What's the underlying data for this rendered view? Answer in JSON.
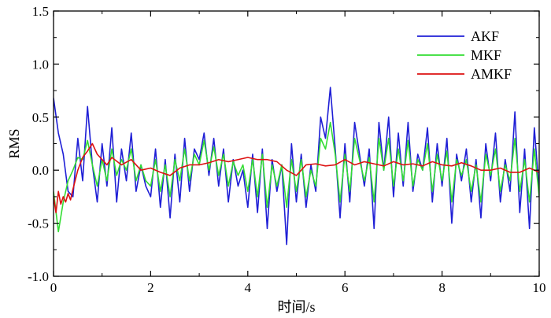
{
  "chart_data": {
    "type": "line",
    "title": "",
    "xlabel": "时间/s",
    "ylabel": "RMS",
    "xlim": [
      0,
      10
    ],
    "ylim": [
      -1.0,
      1.5
    ],
    "xticks": [
      0,
      2,
      4,
      6,
      8,
      10
    ],
    "xtick_labels": [
      "0",
      "2",
      "4",
      "6",
      "8",
      "10"
    ],
    "yticks": [
      -1.0,
      -0.5,
      0.0,
      0.5,
      1.0,
      1.5
    ],
    "ytick_labels": [
      "-1.0",
      "-0.5",
      "0.0",
      "0.5",
      "1.0",
      "1.5"
    ],
    "grid": false,
    "legend": "top-right",
    "series": [
      {
        "name": "AKF",
        "color": "#1f1fd6",
        "x": [
          0,
          0.1,
          0.2,
          0.3,
          0.4,
          0.5,
          0.6,
          0.7,
          0.8,
          0.9,
          1.0,
          1.1,
          1.2,
          1.3,
          1.4,
          1.5,
          1.6,
          1.7,
          1.8,
          1.9,
          2.0,
          2.1,
          2.2,
          2.3,
          2.4,
          2.5,
          2.6,
          2.7,
          2.8,
          2.9,
          3.0,
          3.1,
          3.2,
          3.3,
          3.4,
          3.5,
          3.6,
          3.7,
          3.8,
          3.9,
          4.0,
          4.1,
          4.2,
          4.3,
          4.4,
          4.5,
          4.6,
          4.7,
          4.8,
          4.9,
          5.0,
          5.1,
          5.2,
          5.3,
          5.4,
          5.5,
          5.6,
          5.7,
          5.8,
          5.9,
          6.0,
          6.1,
          6.2,
          6.3,
          6.4,
          6.5,
          6.6,
          6.7,
          6.8,
          6.9,
          7.0,
          7.1,
          7.2,
          7.3,
          7.4,
          7.5,
          7.6,
          7.7,
          7.8,
          7.9,
          8.0,
          8.1,
          8.2,
          8.3,
          8.4,
          8.5,
          8.6,
          8.7,
          8.8,
          8.9,
          9.0,
          9.1,
          9.2,
          9.3,
          9.4,
          9.5,
          9.6,
          9.7,
          9.8,
          9.9,
          10.0
        ],
        "y": [
          0.68,
          0.35,
          0.15,
          -0.2,
          -0.25,
          0.3,
          -0.1,
          0.6,
          0.05,
          -0.3,
          0.25,
          -0.15,
          0.4,
          -0.3,
          0.2,
          -0.1,
          0.35,
          -0.2,
          0.05,
          -0.15,
          -0.25,
          0.2,
          -0.35,
          0.1,
          -0.45,
          0.15,
          -0.3,
          0.3,
          -0.2,
          0.2,
          0.1,
          0.35,
          -0.05,
          0.3,
          -0.15,
          0.2,
          -0.3,
          0.1,
          -0.15,
          0.0,
          -0.35,
          0.15,
          -0.4,
          0.2,
          -0.55,
          0.1,
          -0.2,
          0.05,
          -0.7,
          0.25,
          -0.3,
          0.15,
          -0.35,
          0.05,
          -0.2,
          0.5,
          0.3,
          0.78,
          0.2,
          -0.45,
          0.25,
          -0.3,
          0.45,
          0.15,
          -0.15,
          0.2,
          -0.55,
          0.45,
          0.0,
          0.5,
          -0.25,
          0.35,
          -0.15,
          0.45,
          -0.2,
          0.15,
          0.0,
          0.4,
          -0.3,
          0.25,
          -0.15,
          0.3,
          -0.5,
          0.15,
          -0.1,
          0.2,
          -0.3,
          0.1,
          -0.45,
          0.25,
          -0.1,
          0.35,
          -0.3,
          0.1,
          -0.2,
          0.55,
          -0.4,
          0.2,
          -0.55,
          0.4,
          -0.2
        ]
      },
      {
        "name": "MKF",
        "color": "#33dd33",
        "x": [
          0,
          0.1,
          0.2,
          0.3,
          0.4,
          0.5,
          0.6,
          0.7,
          0.8,
          0.9,
          1.0,
          1.1,
          1.2,
          1.3,
          1.4,
          1.5,
          1.6,
          1.7,
          1.8,
          1.9,
          2.0,
          2.1,
          2.2,
          2.3,
          2.4,
          2.5,
          2.6,
          2.7,
          2.8,
          2.9,
          3.0,
          3.1,
          3.2,
          3.3,
          3.4,
          3.5,
          3.6,
          3.7,
          3.8,
          3.9,
          4.0,
          4.1,
          4.2,
          4.3,
          4.4,
          4.5,
          4.6,
          4.7,
          4.8,
          4.9,
          5.0,
          5.1,
          5.2,
          5.3,
          5.4,
          5.5,
          5.6,
          5.7,
          5.8,
          5.9,
          6.0,
          6.1,
          6.2,
          6.3,
          6.4,
          6.5,
          6.6,
          6.7,
          6.8,
          6.9,
          7.0,
          7.1,
          7.2,
          7.3,
          7.4,
          7.5,
          7.6,
          7.7,
          7.8,
          7.9,
          8.0,
          8.1,
          8.2,
          8.3,
          8.4,
          8.5,
          8.6,
          8.7,
          8.8,
          8.9,
          9.0,
          9.1,
          9.2,
          9.3,
          9.4,
          9.5,
          9.6,
          9.7,
          9.8,
          9.9,
          10.0
        ],
        "y": [
          -0.2,
          -0.58,
          -0.3,
          -0.1,
          0.0,
          0.12,
          0.1,
          0.28,
          0.05,
          -0.15,
          0.1,
          -0.1,
          0.2,
          -0.05,
          0.1,
          0.0,
          0.2,
          -0.1,
          0.05,
          -0.1,
          -0.15,
          0.1,
          -0.2,
          0.05,
          -0.25,
          0.1,
          -0.1,
          0.2,
          -0.1,
          0.15,
          0.05,
          0.28,
          0.0,
          0.22,
          -0.05,
          0.15,
          -0.15,
          0.08,
          -0.05,
          0.05,
          -0.2,
          0.1,
          -0.25,
          0.15,
          -0.35,
          0.05,
          -0.15,
          0.05,
          -0.35,
          0.1,
          -0.2,
          0.1,
          -0.25,
          0.0,
          -0.15,
          0.3,
          0.2,
          0.45,
          0.15,
          -0.3,
          0.15,
          -0.2,
          0.3,
          0.1,
          -0.1,
          0.12,
          -0.3,
          0.3,
          0.0,
          0.3,
          -0.15,
          0.2,
          -0.1,
          0.28,
          -0.15,
          0.1,
          0.0,
          0.25,
          -0.2,
          0.15,
          -0.1,
          0.18,
          -0.3,
          0.1,
          -0.05,
          0.1,
          -0.2,
          0.05,
          -0.3,
          0.15,
          -0.05,
          0.2,
          -0.2,
          0.05,
          -0.1,
          0.3,
          -0.2,
          0.1,
          -0.3,
          0.2,
          -0.25
        ]
      },
      {
        "name": "AMKF",
        "color": "#dd1111",
        "x": [
          0,
          0.05,
          0.1,
          0.15,
          0.2,
          0.25,
          0.3,
          0.35,
          0.4,
          0.5,
          0.6,
          0.7,
          0.8,
          0.9,
          1.0,
          1.1,
          1.2,
          1.4,
          1.6,
          1.8,
          2.0,
          2.2,
          2.4,
          2.6,
          2.8,
          3.0,
          3.2,
          3.4,
          3.6,
          3.8,
          4.0,
          4.2,
          4.4,
          4.6,
          4.8,
          5.0,
          5.2,
          5.4,
          5.6,
          5.8,
          6.0,
          6.2,
          6.4,
          6.6,
          6.8,
          7.0,
          7.2,
          7.4,
          7.6,
          7.8,
          8.0,
          8.2,
          8.4,
          8.6,
          8.8,
          9.0,
          9.2,
          9.4,
          9.6,
          9.8,
          10.0
        ],
        "y": [
          -0.25,
          -0.4,
          -0.2,
          -0.32,
          -0.25,
          -0.3,
          -0.22,
          -0.28,
          -0.18,
          0.0,
          0.12,
          0.18,
          0.25,
          0.15,
          0.1,
          0.05,
          0.12,
          0.05,
          0.1,
          0.0,
          0.02,
          -0.02,
          -0.05,
          0.02,
          0.05,
          0.05,
          0.07,
          0.1,
          0.08,
          0.1,
          0.12,
          0.1,
          0.1,
          0.08,
          0.0,
          -0.05,
          0.05,
          0.06,
          0.04,
          0.05,
          0.1,
          0.05,
          0.08,
          0.06,
          0.04,
          0.08,
          0.05,
          0.06,
          0.04,
          0.08,
          0.05,
          0.04,
          0.07,
          0.04,
          0.0,
          0.0,
          0.02,
          -0.02,
          -0.02,
          0.02,
          -0.02
        ]
      }
    ]
  }
}
